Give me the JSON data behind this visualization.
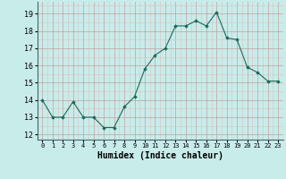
{
  "x": [
    0,
    1,
    2,
    3,
    4,
    5,
    6,
    7,
    8,
    9,
    10,
    11,
    12,
    13,
    14,
    15,
    16,
    17,
    18,
    19,
    20,
    21,
    22,
    23
  ],
  "y": [
    14,
    13,
    13,
    13.9,
    13,
    13,
    12.4,
    12.4,
    13.6,
    14.2,
    15.8,
    16.6,
    17,
    18.3,
    18.3,
    18.6,
    18.3,
    19.1,
    17.6,
    17.5,
    15.9,
    15.6,
    15.1,
    15.1
  ],
  "line_color": "#1a6b5a",
  "marker_color": "#1a6b5a",
  "bg_color": "#c8ecea",
  "major_grid_color": "#c0a0a0",
  "minor_grid_color": "#dcc0c0",
  "xlabel": "Humidex (Indice chaleur)",
  "ylabel_ticks": [
    12,
    13,
    14,
    15,
    16,
    17,
    18,
    19
  ],
  "ylim": [
    11.7,
    19.7
  ],
  "xlim": [
    -0.5,
    23.5
  ]
}
